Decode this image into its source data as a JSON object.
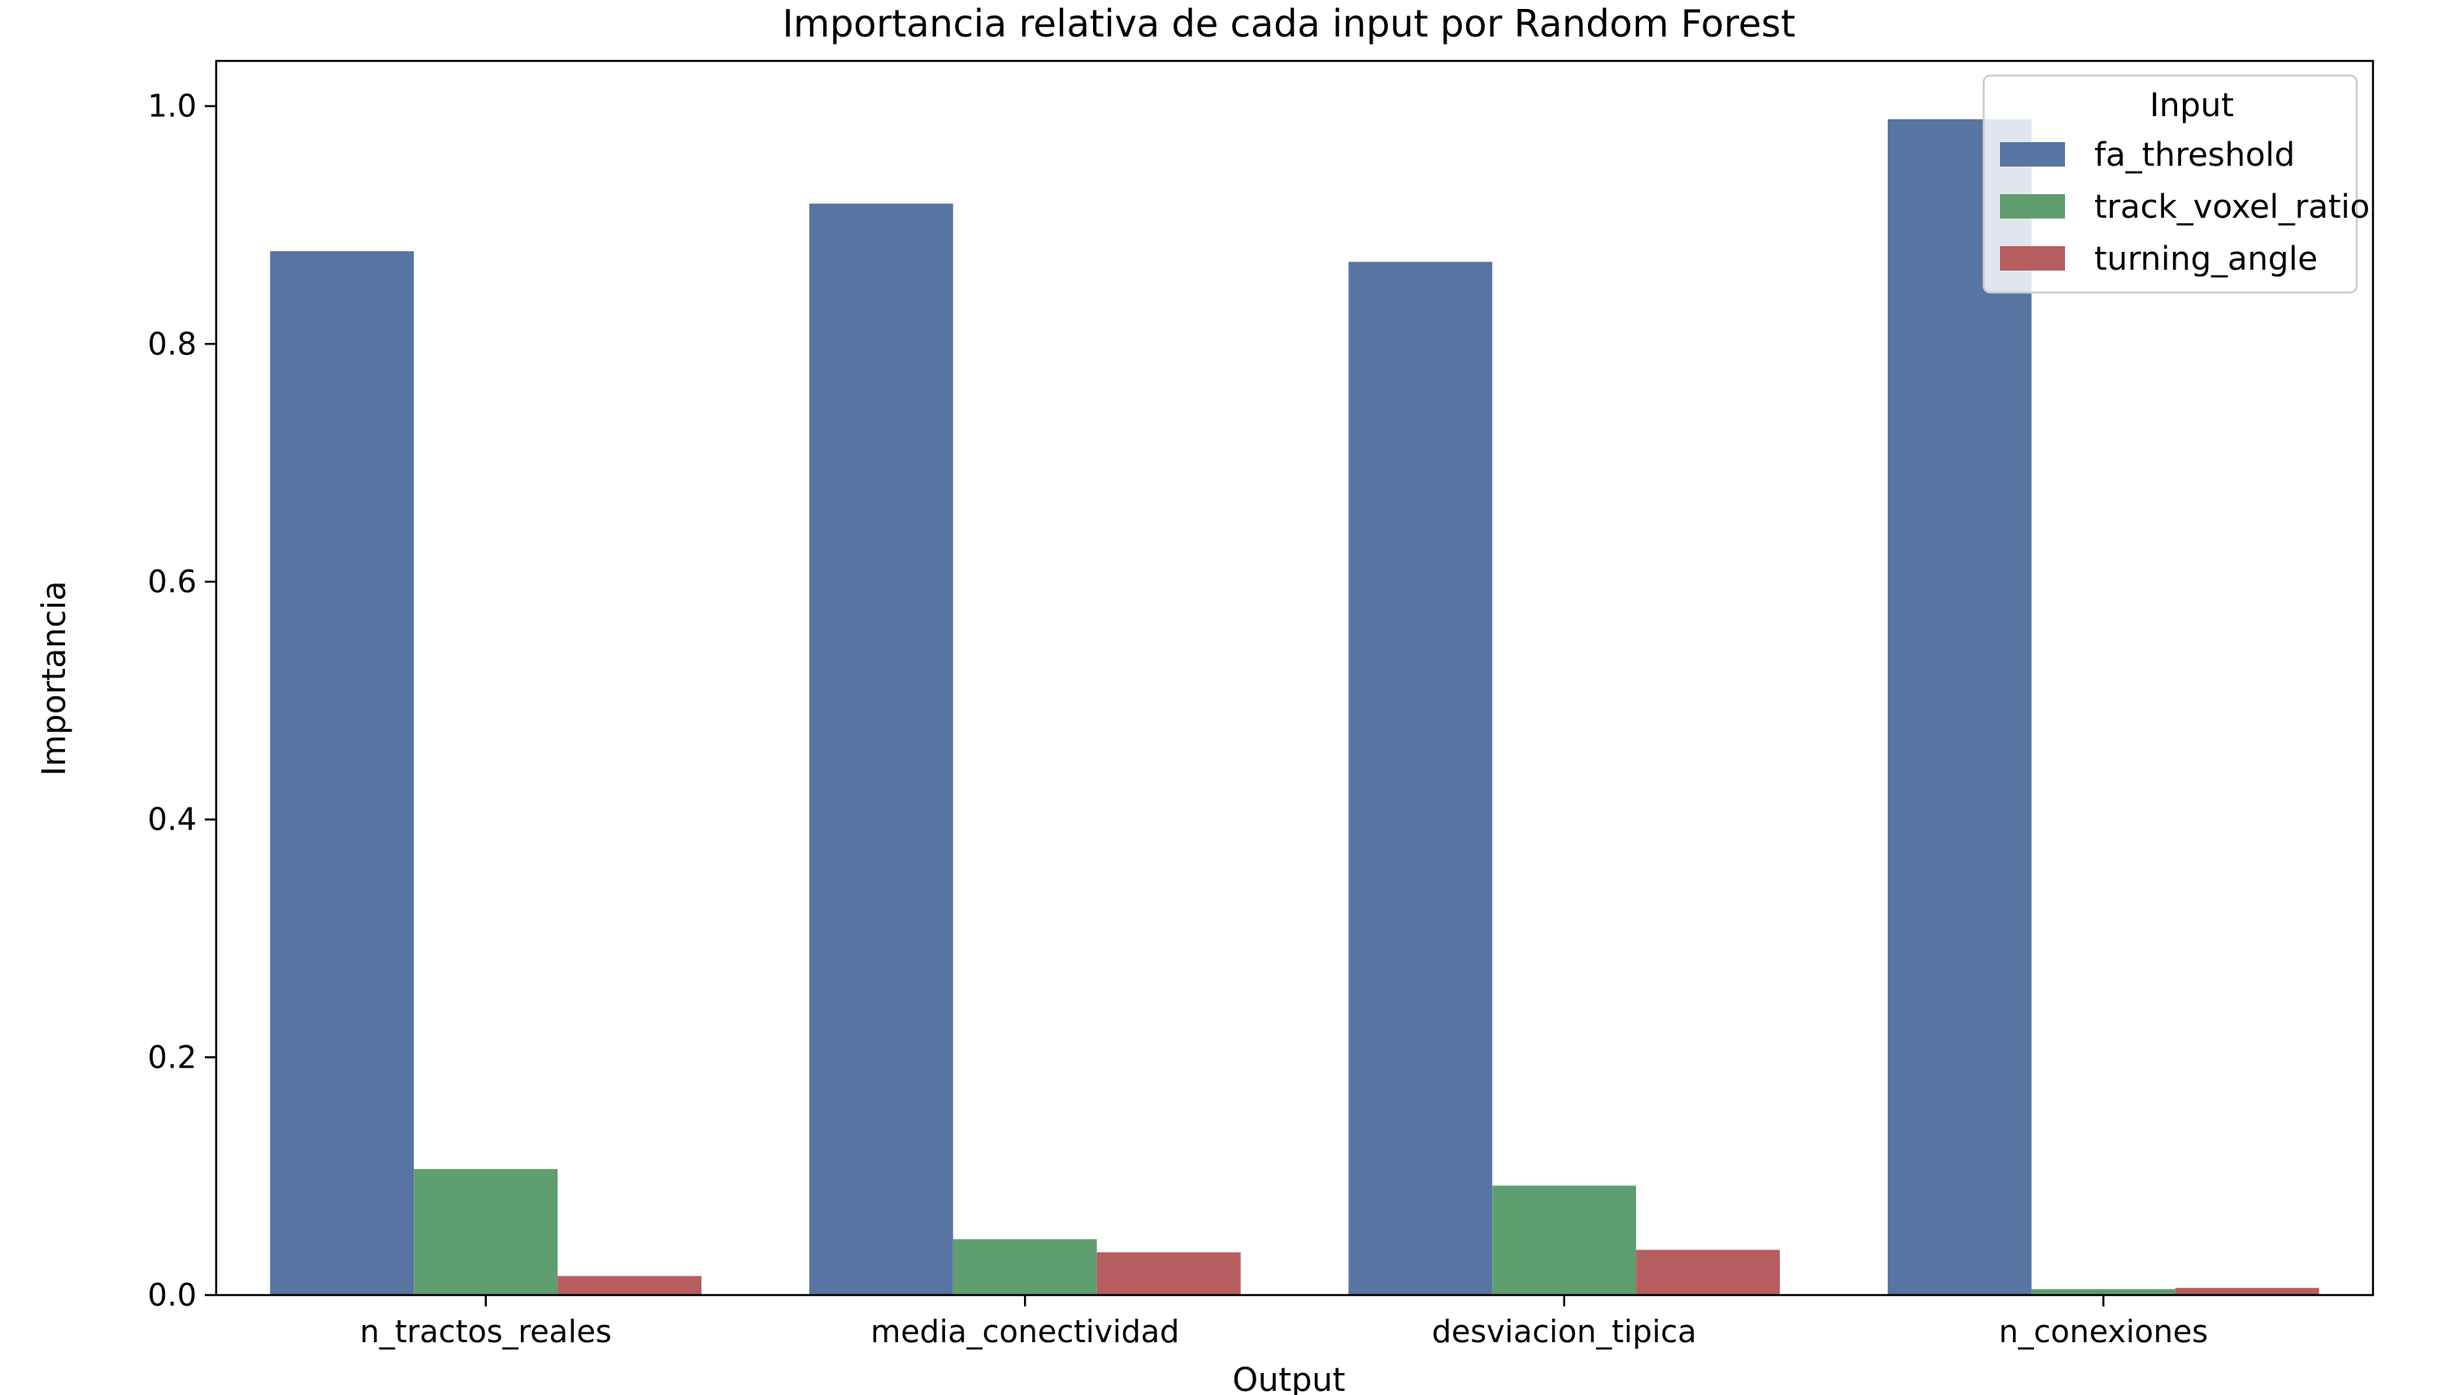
{
  "chart_data": {
    "type": "bar",
    "title": "Importancia relativa de cada input por Random Forest",
    "xlabel": "Output",
    "ylabel": "Importancia",
    "categories": [
      "n_tractos_reales",
      "media_conectividad",
      "desviacion_tipica",
      "n_conexiones"
    ],
    "series": [
      {
        "name": "fa_threshold",
        "color": "#5874a3",
        "values": [
          0.878,
          0.918,
          0.869,
          0.989
        ]
      },
      {
        "name": "track_voxel_ratio",
        "color": "#5f9e6e",
        "values": [
          0.106,
          0.047,
          0.092,
          0.005
        ]
      },
      {
        "name": "turning_angle",
        "color": "#b65d60",
        "values": [
          0.016,
          0.036,
          0.038,
          0.006
        ]
      }
    ],
    "ylim": [
      0,
      1.038
    ],
    "yticks": [
      0.0,
      0.2,
      0.4,
      0.6,
      0.8,
      1.0
    ],
    "ytick_labels": [
      "0.0",
      "0.2",
      "0.4",
      "0.6",
      "0.8",
      "1.0"
    ],
    "legend": {
      "title": "Input",
      "placement": "top-right"
    },
    "grid": false
  }
}
